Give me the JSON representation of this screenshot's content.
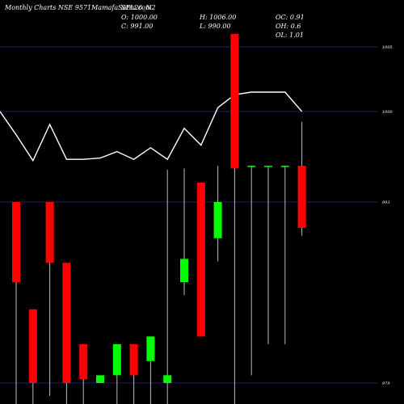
{
  "header": {
    "source": "Monthly Charts NSE 9571MamafaSatra.com",
    "symbol": "SFL26_N2",
    "open_label": "O: 1000.00",
    "close_label": "C: 991.00",
    "high_label": "H: 1006.00",
    "low_label": "L: 990.00",
    "oc_label": "OC: 0.91",
    "oh_label": "OH: 0.6",
    "ol_label": "OL: 1.01"
  },
  "colors": {
    "background": "#000000",
    "grid": "#1c1c6e",
    "up": "#00ff00",
    "down": "#ff0000",
    "wick": "#bbbbbb",
    "line": "#ffffff",
    "text": "#ffffff"
  },
  "chart_data": {
    "type": "candlestick",
    "ylim": [
      978.5,
      1006.5
    ],
    "y_ticks": [
      {
        "value": 1005,
        "label": "1005"
      },
      {
        "value": 1000,
        "label": "1000"
      },
      {
        "value": 993,
        "label": "993"
      },
      {
        "value": 979,
        "label": "979"
      }
    ],
    "candles": [
      {
        "open": 993.0,
        "high": 993.0,
        "low": 976.0,
        "close": 986.8
      },
      {
        "open": 984.7,
        "high": 984.7,
        "low": 976.0,
        "close": 979.0
      },
      {
        "open": 993.0,
        "high": 993.0,
        "low": 978.0,
        "close": 988.3
      },
      {
        "open": 988.3,
        "high": 988.3,
        "low": 976.0,
        "close": 979.0
      },
      {
        "open": 982.0,
        "high": 982.0,
        "low": 976.0,
        "close": 979.3
      },
      {
        "open": 979.0,
        "high": 979.6,
        "low": 979.0,
        "close": 979.6
      },
      {
        "open": 979.6,
        "high": 982.0,
        "low": 976.0,
        "close": 982.0
      },
      {
        "open": 982.0,
        "high": 982.0,
        "low": 976.0,
        "close": 979.6
      },
      {
        "open": 980.7,
        "high": 982.6,
        "low": 976.0,
        "close": 982.6
      },
      {
        "open": 979.0,
        "high": 995.5,
        "low": 976.0,
        "close": 979.6
      },
      {
        "open": 986.8,
        "high": 995.6,
        "low": 985.8,
        "close": 988.6
      },
      {
        "open": 994.5,
        "high": 994.5,
        "low": 982.6,
        "close": 982.6
      },
      {
        "open": 990.2,
        "high": 995.8,
        "low": 988.4,
        "close": 993.0
      },
      {
        "open": 1006.0,
        "high": 1006.0,
        "low": 976.0,
        "close": 995.6
      },
      {
        "open": 995.8,
        "high": 995.8,
        "low": 979.6,
        "close": 995.8
      },
      {
        "open": 995.8,
        "high": 995.8,
        "low": 982.0,
        "close": 995.8
      },
      {
        "open": 995.8,
        "high": 995.8,
        "low": 982.0,
        "close": 995.8
      },
      {
        "open": 995.8,
        "high": 999.2,
        "low": 990.4,
        "close": 991.0
      }
    ],
    "line_series": [
      1000.0,
      998.2,
      996.2,
      999.0,
      996.3,
      996.3,
      996.4,
      996.9,
      996.3,
      997.2,
      996.3,
      998.7,
      997.4,
      1000.3,
      1001.3,
      1001.5,
      1001.5,
      1001.5,
      1000.0
    ]
  }
}
